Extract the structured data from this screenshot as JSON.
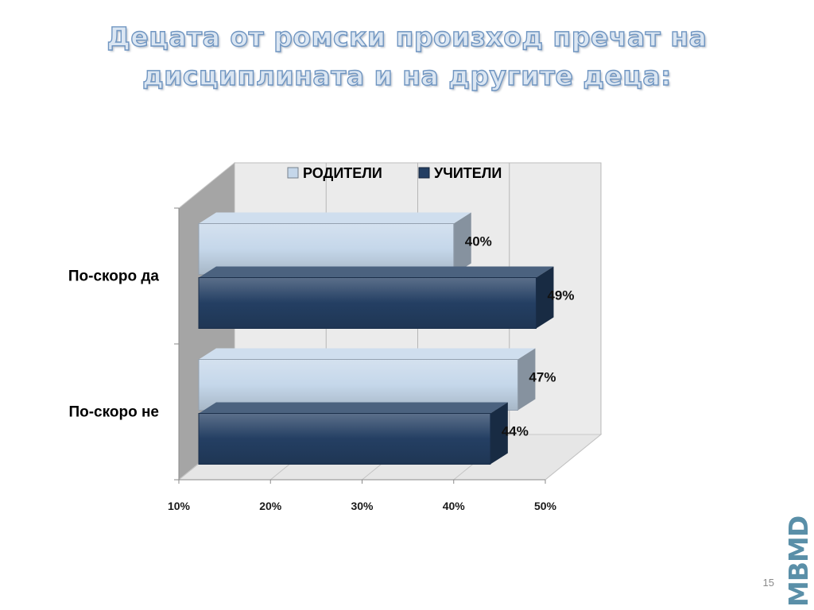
{
  "slide": {
    "title_line1": "Децата от ромски произход пречат на",
    "title_line2": "дисциплината и на другите деца:",
    "page_number": "15",
    "logo_text": "MBMD"
  },
  "chart_data": {
    "type": "bar",
    "orientation": "horizontal",
    "style": "3d-clustered",
    "categories": [
      "По-скоро да",
      "По-скоро не"
    ],
    "series": [
      {
        "name": "РОДИТЕЛИ",
        "values": [
          40,
          47
        ],
        "labels": [
          "40%",
          "47%"
        ],
        "color": "#c5d7ea"
      },
      {
        "name": "УЧИТЕЛИ",
        "values": [
          49,
          44
        ],
        "labels": [
          "49%",
          "44%"
        ],
        "color": "#243f63"
      }
    ],
    "x_ticks": [
      "10%",
      "20%",
      "30%",
      "40%",
      "50%"
    ],
    "xlim": [
      10,
      50
    ],
    "legend_position": "top",
    "grid": true
  }
}
